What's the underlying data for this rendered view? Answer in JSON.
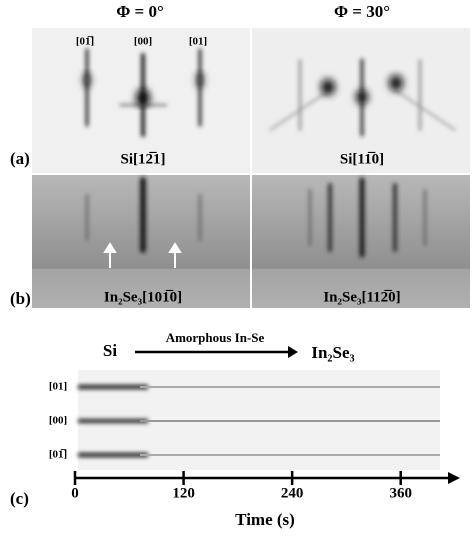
{
  "header": {
    "phi_left": "Φ = 0°",
    "phi_right": "Φ = 30°"
  },
  "panel_a": {
    "label": "(a)",
    "spots": [
      "[01̅]",
      "[00]",
      "[01]"
    ],
    "left_caption": "Si[12̅1]",
    "right_caption": "Si[11̅0]"
  },
  "panel_b": {
    "label": "(b)",
    "left_caption": "In₂Se₃[101̅0]",
    "right_caption": "In₂Se₃[112̅0]"
  },
  "panel_c": {
    "label": "(c)",
    "stage_start": "Si",
    "stage_middle": "Amorphous In-Se",
    "stage_end": "In₂Se₃",
    "rows": [
      "[01]",
      "[00]",
      "[01̅]"
    ],
    "xlabel": "Time (s)",
    "xlim": [
      0,
      420
    ],
    "xticks": [
      0,
      120,
      240,
      360
    ]
  }
}
